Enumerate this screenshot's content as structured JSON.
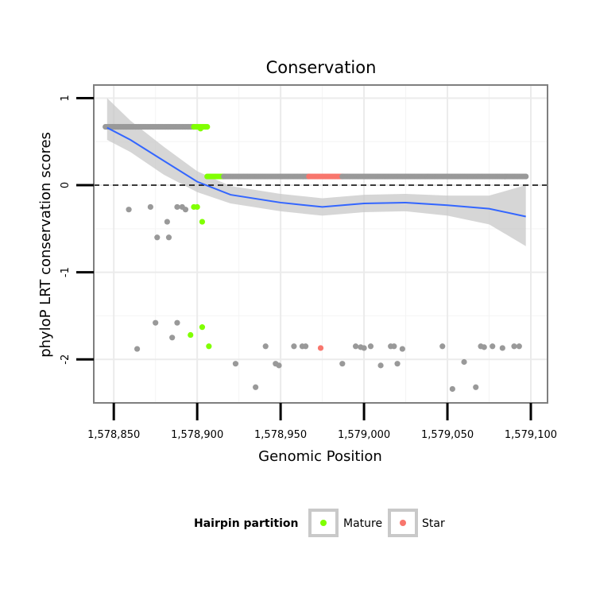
{
  "chart_data": {
    "type": "scatter",
    "title": "Conservation",
    "xlabel": "Genomic Position",
    "ylabel": "phyloP LRT conservation scores",
    "xlim": [
      1578838,
      1579110
    ],
    "ylim": [
      -2.5,
      1.15
    ],
    "x_ticks": [
      1578850,
      1578900,
      1578950,
      1579000,
      1579050,
      1579100
    ],
    "x_tick_labels": [
      "1,578,850",
      "1,578,900",
      "1,578,950",
      "1,579,000",
      "1,579,050",
      "1,579,100"
    ],
    "y_ticks": [
      1,
      0,
      -1,
      -2
    ],
    "y_tick_labels": [
      "1",
      "0",
      "-1",
      "-2"
    ],
    "grid": true,
    "reference_line": {
      "y": 0,
      "style": "dashed"
    },
    "colors": {
      "Other": "#999999",
      "Mature": "#80ff00",
      "Star": "#f8766d",
      "smooth": "#3366ff",
      "ribbon": "#c8c8c8"
    },
    "legend": {
      "title": "Hairpin partition",
      "position": "bottom",
      "entries": [
        {
          "label": "Mature",
          "color": "#80ff00"
        },
        {
          "label": "Star",
          "color": "#f8766d"
        }
      ]
    },
    "band_segments": [
      {
        "category": "Other",
        "x_start": 1578845,
        "x_end": 1578898,
        "y": 0.67
      },
      {
        "category": "Mature",
        "x_start": 1578898,
        "x_end": 1578906,
        "y": 0.67
      },
      {
        "category": "Mature",
        "x_start": 1578906,
        "x_end": 1578916,
        "y": 0.1
      },
      {
        "category": "Other",
        "x_start": 1578916,
        "x_end": 1578967,
        "y": 0.1
      },
      {
        "category": "Star",
        "x_start": 1578967,
        "x_end": 1578987,
        "y": 0.1
      },
      {
        "category": "Other",
        "x_start": 1578987,
        "x_end": 1579097,
        "y": 0.1
      }
    ],
    "series": [
      {
        "name": "Other",
        "points": [
          [
            1578859,
            -0.28
          ],
          [
            1578864,
            -1.88
          ],
          [
            1578872,
            -0.25
          ],
          [
            1578876,
            -0.6
          ],
          [
            1578882,
            -0.42
          ],
          [
            1578883,
            -0.6
          ],
          [
            1578885,
            -1.75
          ],
          [
            1578888,
            -0.25
          ],
          [
            1578888,
            -1.58
          ],
          [
            1578891,
            -0.25
          ],
          [
            1578893,
            -0.28
          ],
          [
            1578875,
            -1.58
          ],
          [
            1578923,
            -2.05
          ],
          [
            1578935,
            -2.32
          ],
          [
            1578941,
            -1.85
          ],
          [
            1578947,
            -2.05
          ],
          [
            1578949,
            -2.07
          ],
          [
            1578958,
            -1.85
          ],
          [
            1578963,
            -1.85
          ],
          [
            1578965,
            -1.85
          ],
          [
            1578987,
            -2.05
          ],
          [
            1578995,
            -1.85
          ],
          [
            1578998,
            -1.86
          ],
          [
            1579000,
            -1.87
          ],
          [
            1579004,
            -1.85
          ],
          [
            1579010,
            -2.07
          ],
          [
            1579016,
            -1.85
          ],
          [
            1579018,
            -1.85
          ],
          [
            1579020,
            -2.05
          ],
          [
            1579023,
            -1.88
          ],
          [
            1579047,
            -1.85
          ],
          [
            1579053,
            -2.34
          ],
          [
            1579060,
            -2.03
          ],
          [
            1579067,
            -2.32
          ],
          [
            1579070,
            -1.85
          ],
          [
            1579072,
            -1.86
          ],
          [
            1579077,
            -1.85
          ],
          [
            1579083,
            -1.87
          ],
          [
            1579090,
            -1.85
          ],
          [
            1579093,
            -1.85
          ]
        ]
      },
      {
        "name": "Mature",
        "points": [
          [
            1578898,
            -0.25
          ],
          [
            1578900,
            -0.25
          ],
          [
            1578903,
            -0.42
          ],
          [
            1578896,
            -1.72
          ],
          [
            1578903,
            -1.63
          ],
          [
            1578907,
            -1.85
          ],
          [
            1578902,
            0.65
          ]
        ]
      },
      {
        "name": "Star",
        "points": [
          [
            1578974,
            -1.87
          ]
        ]
      }
    ],
    "smooth": {
      "x": [
        1578846,
        1578860,
        1578880,
        1578900,
        1578920,
        1578950,
        1578975,
        1579000,
        1579025,
        1579050,
        1579075,
        1579097
      ],
      "y": [
        0.66,
        0.52,
        0.28,
        0.04,
        -0.11,
        -0.2,
        -0.25,
        -0.21,
        -0.2,
        -0.23,
        -0.27,
        -0.36
      ],
      "lower": [
        0.52,
        0.38,
        0.12,
        -0.08,
        -0.21,
        -0.3,
        -0.35,
        -0.31,
        -0.3,
        -0.35,
        -0.45,
        -0.7
      ],
      "upper": [
        1.0,
        0.74,
        0.44,
        0.16,
        -0.01,
        -0.1,
        -0.15,
        -0.11,
        -0.1,
        -0.12,
        -0.12,
        -0.0
      ]
    }
  }
}
